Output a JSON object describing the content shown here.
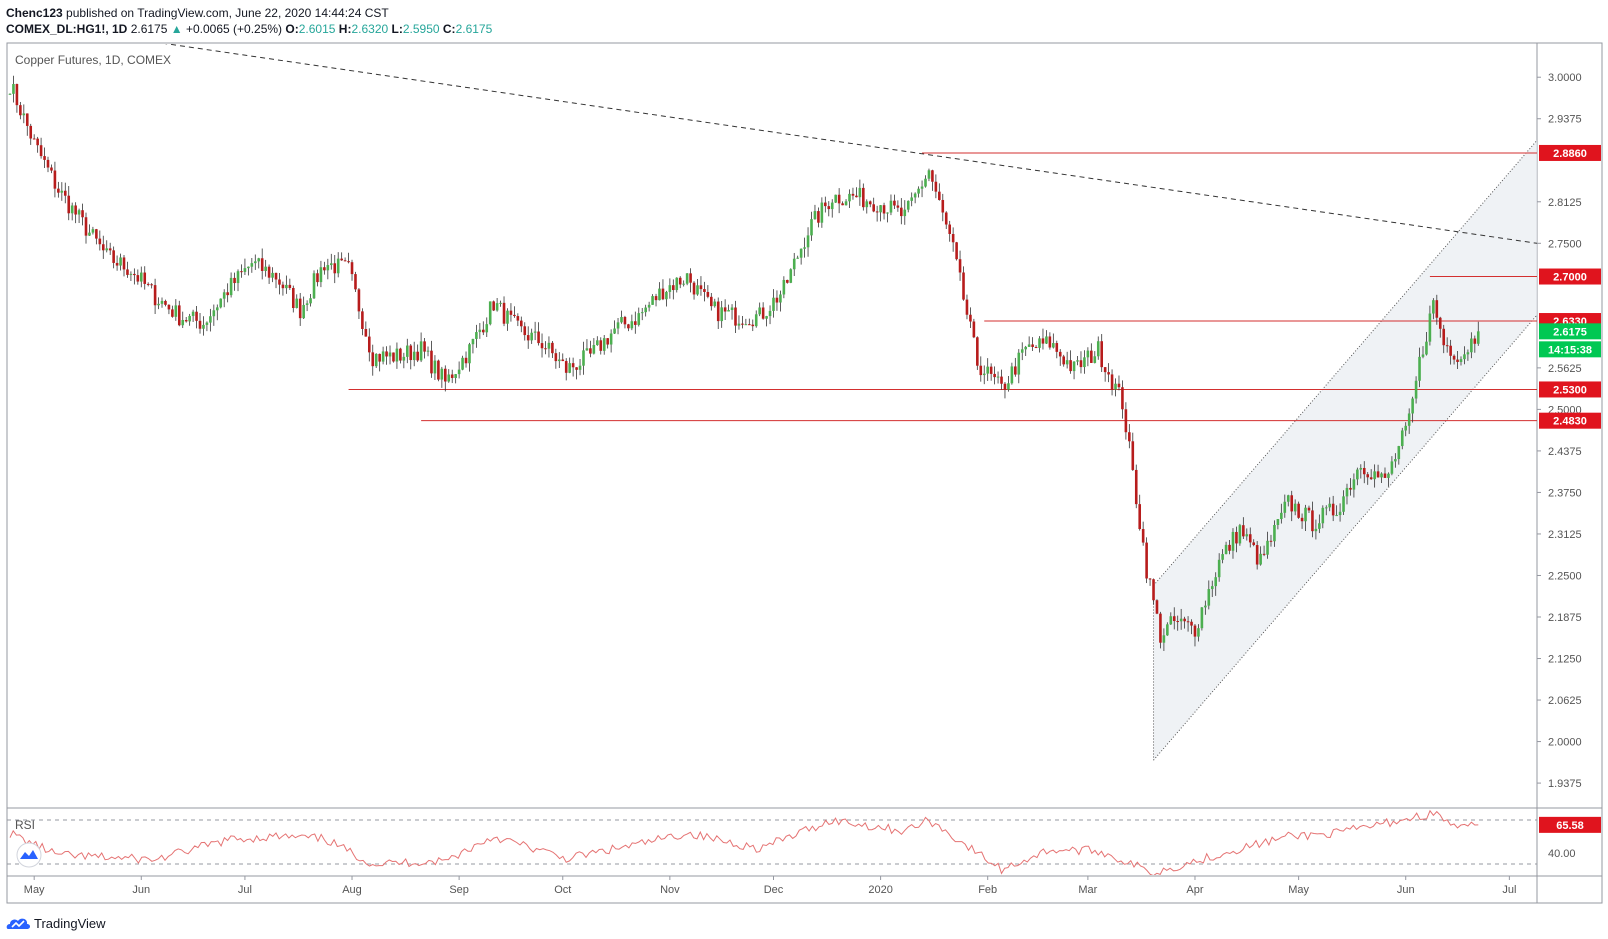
{
  "header": {
    "author": "Chenc123",
    "published_text": "published on TradingView.com, June 22, 2020 14:44:24 CST",
    "symbol": "COMEX_DL:HG1!, 1D",
    "price": "2.6175",
    "change_arrow": "▲",
    "change": "+0.0065 (+0.25%)",
    "o_label": "O:",
    "o_value": "2.6015",
    "h_label": "H:",
    "h_value": "2.6320",
    "l_label": "L:",
    "l_value": "2.5950",
    "c_label": "C:",
    "c_value": "2.6175"
  },
  "footer": {
    "brand": "TradingView"
  },
  "colors": {
    "up": "#26a69a",
    "down": "#ef5350",
    "bull_body": "#4caf50",
    "bear_body": "#b71c1c",
    "level_line": "#d32f2f",
    "level_label_bg": "#e0141e",
    "current_label_bg": "#00c853",
    "rsi_line": "#e57373",
    "channel_fill": "#e8edf1"
  },
  "chart_data": [
    {
      "type": "candlestick",
      "title": "Copper Futures, 1D, COMEX",
      "x_ticks": [
        "May",
        "Jun",
        "Jul",
        "Aug",
        "Sep",
        "Oct",
        "Nov",
        "Dec",
        "2020",
        "Feb",
        "Mar",
        "Apr",
        "May",
        "Jun",
        "Jul"
      ],
      "y_ticks": [
        "3.0000",
        "2.9375",
        "2.8125",
        "2.7500",
        "2.5625",
        "2.5000",
        "2.4375",
        "2.3750",
        "2.3125",
        "2.2500",
        "2.1875",
        "2.1250",
        "2.0625",
        "2.0000",
        "1.9375"
      ],
      "ylim": [
        1.9,
        3.05
      ],
      "close_path": [
        {
          "date": "2019-04-24",
          "price": 2.99
        },
        {
          "date": "2019-05-01",
          "price": 2.9
        },
        {
          "date": "2019-05-08",
          "price": 2.83
        },
        {
          "date": "2019-05-15",
          "price": 2.78
        },
        {
          "date": "2019-05-22",
          "price": 2.73
        },
        {
          "date": "2019-05-29",
          "price": 2.71
        },
        {
          "date": "2019-06-05",
          "price": 2.67
        },
        {
          "date": "2019-06-12",
          "price": 2.64
        },
        {
          "date": "2019-06-19",
          "price": 2.63
        },
        {
          "date": "2019-06-26",
          "price": 2.68
        },
        {
          "date": "2019-07-03",
          "price": 2.72
        },
        {
          "date": "2019-07-10",
          "price": 2.7
        },
        {
          "date": "2019-07-17",
          "price": 2.65
        },
        {
          "date": "2019-07-24",
          "price": 2.72
        },
        {
          "date": "2019-07-31",
          "price": 2.71
        },
        {
          "date": "2019-08-07",
          "price": 2.58
        },
        {
          "date": "2019-08-14",
          "price": 2.58
        },
        {
          "date": "2019-08-21",
          "price": 2.59
        },
        {
          "date": "2019-08-28",
          "price": 2.54
        },
        {
          "date": "2019-09-04",
          "price": 2.59
        },
        {
          "date": "2019-09-11",
          "price": 2.66
        },
        {
          "date": "2019-09-18",
          "price": 2.62
        },
        {
          "date": "2019-09-25",
          "price": 2.6
        },
        {
          "date": "2019-10-02",
          "price": 2.56
        },
        {
          "date": "2019-10-09",
          "price": 2.58
        },
        {
          "date": "2019-10-16",
          "price": 2.62
        },
        {
          "date": "2019-10-23",
          "price": 2.64
        },
        {
          "date": "2019-10-30",
          "price": 2.68
        },
        {
          "date": "2019-11-06",
          "price": 2.7
        },
        {
          "date": "2019-11-13",
          "price": 2.65
        },
        {
          "date": "2019-11-20",
          "price": 2.64
        },
        {
          "date": "2019-11-27",
          "price": 2.64
        },
        {
          "date": "2019-12-04",
          "price": 2.68
        },
        {
          "date": "2019-12-11",
          "price": 2.77
        },
        {
          "date": "2019-12-18",
          "price": 2.82
        },
        {
          "date": "2019-12-25",
          "price": 2.82
        },
        {
          "date": "2020-01-01",
          "price": 2.81
        },
        {
          "date": "2020-01-08",
          "price": 2.79
        },
        {
          "date": "2020-01-15",
          "price": 2.86
        },
        {
          "date": "2020-01-22",
          "price": 2.74
        },
        {
          "date": "2020-01-29",
          "price": 2.57
        },
        {
          "date": "2020-02-05",
          "price": 2.53
        },
        {
          "date": "2020-02-12",
          "price": 2.59
        },
        {
          "date": "2020-02-19",
          "price": 2.6
        },
        {
          "date": "2020-02-26",
          "price": 2.56
        },
        {
          "date": "2020-03-04",
          "price": 2.59
        },
        {
          "date": "2020-03-11",
          "price": 2.51
        },
        {
          "date": "2020-03-18",
          "price": 2.26
        },
        {
          "date": "2020-03-22",
          "price": 2.16
        },
        {
          "date": "2020-03-26",
          "price": 2.18
        },
        {
          "date": "2020-04-01",
          "price": 2.17
        },
        {
          "date": "2020-04-08",
          "price": 2.27
        },
        {
          "date": "2020-04-14",
          "price": 2.32
        },
        {
          "date": "2020-04-20",
          "price": 2.27
        },
        {
          "date": "2020-04-28",
          "price": 2.36
        },
        {
          "date": "2020-05-05",
          "price": 2.33
        },
        {
          "date": "2020-05-12",
          "price": 2.35
        },
        {
          "date": "2020-05-19",
          "price": 2.42
        },
        {
          "date": "2020-05-26",
          "price": 2.39
        },
        {
          "date": "2020-06-02",
          "price": 2.48
        },
        {
          "date": "2020-06-05",
          "price": 2.57
        },
        {
          "date": "2020-06-09",
          "price": 2.66
        },
        {
          "date": "2020-06-12",
          "price": 2.6
        },
        {
          "date": "2020-06-17",
          "price": 2.58
        },
        {
          "date": "2020-06-22",
          "price": 2.6175
        }
      ],
      "horizontal_levels": [
        {
          "label": "2.8860",
          "price": 2.886,
          "from": "2020-01-13"
        },
        {
          "label": "2.7000",
          "price": 2.7,
          "from": "2020-06-08"
        },
        {
          "label": "2.6330",
          "price": 2.633,
          "from": "2020-01-31"
        },
        {
          "label": "2.5300",
          "price": 2.53,
          "from": "2019-07-31"
        },
        {
          "label": "2.4830",
          "price": 2.483,
          "from": "2019-08-21"
        }
      ],
      "current_price_label": "2.6175",
      "countdown_label": "14:15:38",
      "trendline": {
        "start": {
          "date": "2019-05-20",
          "price": 3.065
        },
        "end": {
          "date": "2020-07-09",
          "price": 2.75
        }
      },
      "channel": {
        "upper_start": {
          "date": "2020-03-20",
          "price": 2.235
        },
        "upper_end": {
          "date": "2020-07-09",
          "price": 2.905
        },
        "lower_start": {
          "date": "2020-03-20",
          "price": 1.972
        },
        "lower_end": {
          "date": "2020-07-09",
          "price": 2.642
        }
      }
    },
    {
      "type": "line",
      "title": "RSI",
      "y_ticks": [
        "40.00"
      ],
      "last_value_label": "65.58",
      "guide_levels": [
        70,
        30
      ],
      "ylim": [
        20,
        80
      ],
      "path": [
        {
          "date": "2019-04-24",
          "value": 58
        },
        {
          "date": "2019-05-08",
          "value": 38
        },
        {
          "date": "2019-06-05",
          "value": 34
        },
        {
          "date": "2019-06-26",
          "value": 52
        },
        {
          "date": "2019-07-10",
          "value": 55
        },
        {
          "date": "2019-07-24",
          "value": 53
        },
        {
          "date": "2019-08-07",
          "value": 30
        },
        {
          "date": "2019-08-28",
          "value": 33
        },
        {
          "date": "2019-09-11",
          "value": 55
        },
        {
          "date": "2019-10-02",
          "value": 35
        },
        {
          "date": "2019-10-23",
          "value": 48
        },
        {
          "date": "2019-11-06",
          "value": 58
        },
        {
          "date": "2019-11-27",
          "value": 44
        },
        {
          "date": "2019-12-18",
          "value": 70
        },
        {
          "date": "2020-01-08",
          "value": 60
        },
        {
          "date": "2020-01-15",
          "value": 70
        },
        {
          "date": "2020-02-05",
          "value": 25
        },
        {
          "date": "2020-02-19",
          "value": 43
        },
        {
          "date": "2020-03-04",
          "value": 42
        },
        {
          "date": "2020-03-20",
          "value": 22
        },
        {
          "date": "2020-04-14",
          "value": 44
        },
        {
          "date": "2020-04-28",
          "value": 55
        },
        {
          "date": "2020-05-12",
          "value": 58
        },
        {
          "date": "2020-06-09",
          "value": 76
        },
        {
          "date": "2020-06-17",
          "value": 62
        },
        {
          "date": "2020-06-22",
          "value": 65.58
        }
      ]
    }
  ]
}
